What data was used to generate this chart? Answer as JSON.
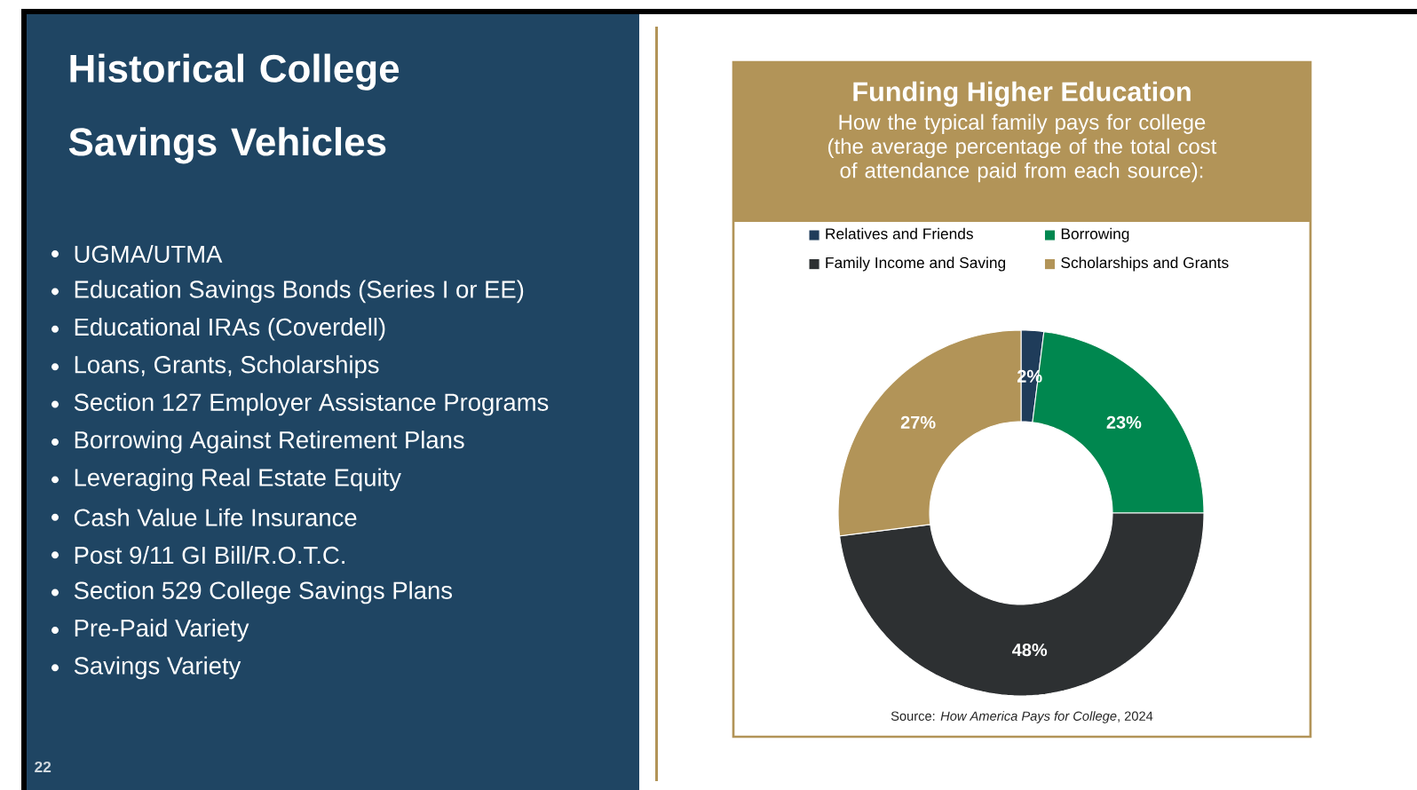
{
  "chart_data": [
    {
      "type": "other",
      "title": "Historical College Savings Vehicles",
      "annotations": [
        "UGMA/UTMA",
        "Education Savings Bonds (Series I or EE)",
        "Educational IRAs (Coverdell)",
        "Loans, Grants, Scholarships",
        "Section 127 Employer Assistance Programs",
        "Borrowing Against Retirement Plans",
        "Leveraging Real Estate Equity",
        "Cash Value Life Insurance",
        "Post 9/11 GI Bill/R.O.T.C.",
        "Section 529 College Savings Plans",
        "Pre-Paid Variety",
        "Savings Variety",
        "22"
      ]
    },
    {
      "type": "donut",
      "title": "Funding Higher Education",
      "subtitle": "How the typical family pays for college (the average percentage of the total cost of attendance paid from each source):",
      "categories": [
        "Relatives and Friends",
        "Borrowing",
        "Family Income and Saving",
        "Scholarships and Grants"
      ],
      "values": [
        2,
        23,
        48,
        27
      ],
      "colors": [
        "#1f3c5a",
        "#00874f",
        "#2d3032",
        "#b29458"
      ],
      "value_labels": [
        "2%",
        "23%",
        "48%",
        "27%"
      ],
      "legend": "top",
      "annotations": [
        "Source: *How America Pays for College*, 2024"
      ]
    }
  ]
}
